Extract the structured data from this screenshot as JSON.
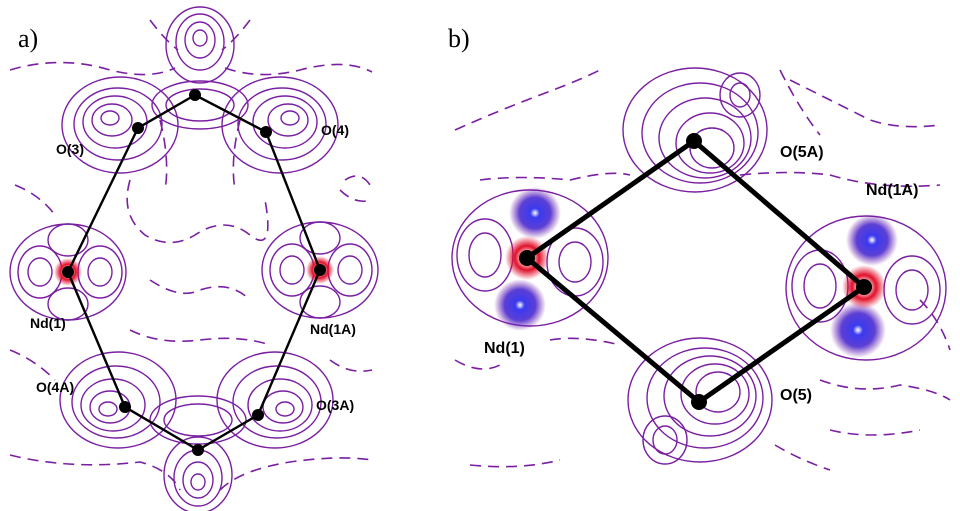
{
  "panels": {
    "a": {
      "letter": "a)"
    },
    "b": {
      "letter": "b)"
    }
  },
  "labels_a": {
    "o3": "O(3)",
    "o4": "O(4)",
    "nd1": "Nd(1)",
    "nd1a": "Nd(1A)",
    "o4a": "O(4A)",
    "o3a": "O(3A)"
  },
  "labels_b": {
    "o5a": "O(5A)",
    "nd1a": "Nd(1A)",
    "nd1": "Nd(1)",
    "o5": "O(5)"
  },
  "colors": {
    "contour_positive": "#7a1fa2",
    "contour_negative": "#7a1fa2",
    "core_blue": "#2a2ad8",
    "core_red": "#e0102a",
    "bond": "#000000"
  }
}
